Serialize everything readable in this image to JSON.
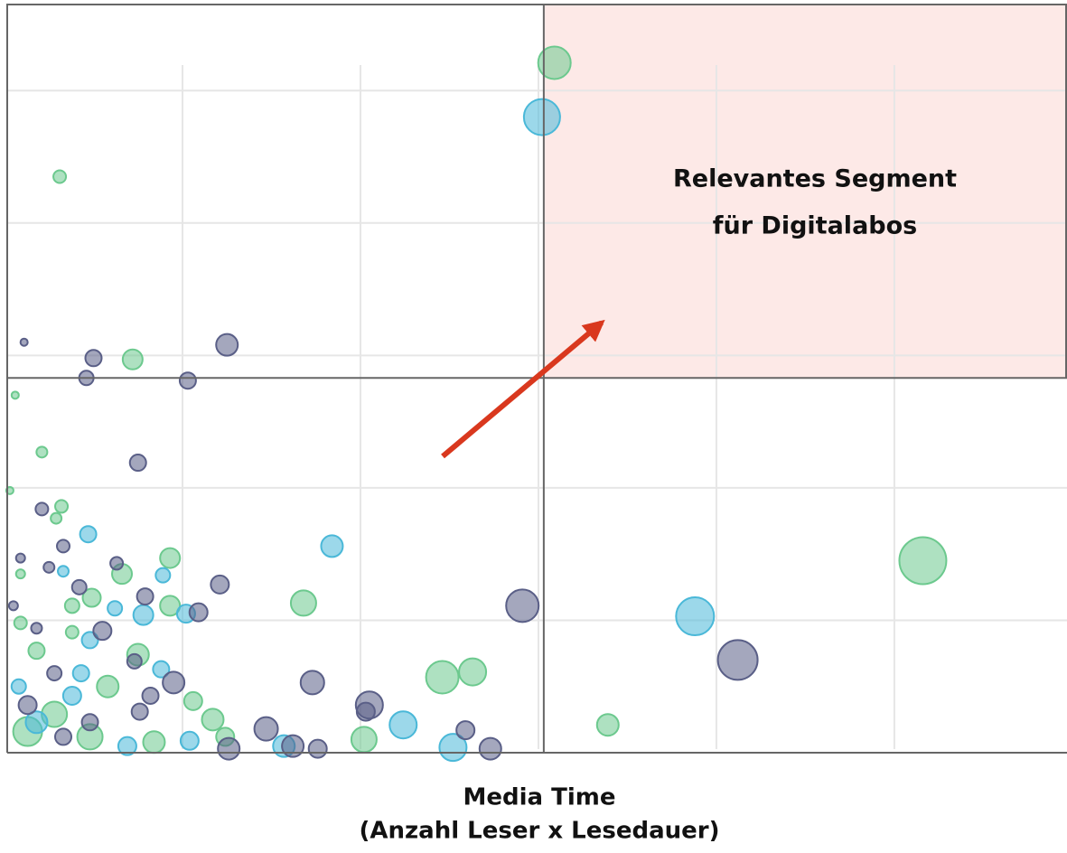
{
  "chart_data": {
    "type": "scatter",
    "xlabel": [
      "Media Time",
      "(Anzahl Leser x Lesedauer)"
    ],
    "annotation": [
      "Relevantes Segment",
      "für Digitalabos"
    ],
    "xlim": [
      0,
      5.97
    ],
    "ylim": [
      0,
      5.65
    ],
    "xticks": [
      1,
      2,
      3,
      4,
      5
    ],
    "yticks": [
      1,
      2,
      3,
      4,
      5
    ],
    "grid": true,
    "grid_color": "#e6e6e6",
    "quadrant_lines": {
      "x": 3.03,
      "y": 2.83
    },
    "highlight_color": "#fde9e7",
    "series": [
      {
        "color": "#6cc98e",
        "x": [
          3.09,
          0.31,
          0.72,
          0.06,
          0.21,
          0.32,
          0.29,
          0.03,
          0.93,
          0.66,
          0.49,
          1.68,
          0.93,
          5.16,
          2.46,
          2.63,
          3.39,
          2.02,
          0.75,
          1.06,
          1.17,
          0.38,
          0.09,
          0.18,
          0.58,
          0.28,
          0.13,
          0.48,
          0.84,
          1.24,
          0.09,
          0.38
        ],
        "values": [
          5.21,
          4.35,
          2.97,
          2.7,
          2.27,
          1.86,
          1.77,
          1.98,
          1.47,
          1.35,
          1.17,
          1.13,
          1.11,
          1.45,
          0.57,
          0.61,
          0.21,
          0.1,
          0.74,
          0.39,
          0.25,
          1.11,
          0.98,
          0.77,
          0.5,
          0.29,
          0.16,
          0.12,
          0.08,
          0.12,
          1.35,
          0.91
        ],
        "sizes": [
          18,
          7,
          11,
          4,
          6,
          7,
          6,
          4,
          11,
          11,
          10,
          14,
          11,
          26,
          18,
          15,
          12,
          14,
          12,
          10,
          12,
          8,
          7,
          9,
          12,
          14,
          16,
          14,
          12,
          10,
          5,
          7
        ]
      },
      {
        "color": "#4ab8d8",
        "x": [
          3.02,
          1.84,
          0.47,
          0.89,
          0.78,
          1.02,
          0.62,
          3.88,
          2.24,
          2.52,
          0.88,
          0.33,
          0.48,
          0.38,
          0.18,
          0.69,
          1.57,
          0.08,
          1.04,
          0.43
        ],
        "values": [
          4.8,
          1.56,
          1.65,
          1.34,
          1.04,
          1.05,
          1.09,
          1.03,
          0.21,
          0.04,
          0.63,
          1.37,
          0.85,
          0.43,
          0.23,
          0.05,
          0.05,
          0.5,
          0.09,
          0.6
        ],
        "sizes": [
          20,
          12,
          9,
          8,
          11,
          10,
          8,
          21,
          15,
          15,
          9,
          6,
          9,
          10,
          12,
          10,
          12,
          8,
          10,
          9
        ]
      },
      {
        "color": "#5a5f87",
        "x": [
          0.11,
          0.5,
          0.46,
          1.25,
          1.03,
          0.75,
          0.21,
          0.33,
          0.09,
          0.25,
          0.42,
          0.63,
          1.21,
          0.79,
          1.09,
          2.91,
          0.55,
          4.12,
          0.95,
          1.73,
          2.05,
          2.03,
          1.47,
          2.59,
          2.73,
          1.76,
          1.26,
          1.62,
          0.82,
          0.76,
          0.73,
          0.18,
          0.05,
          0.28,
          0.13,
          0.48,
          0.33
        ],
        "values": [
          3.1,
          2.98,
          2.83,
          3.08,
          2.81,
          2.19,
          1.84,
          1.56,
          1.47,
          1.4,
          1.25,
          1.43,
          1.27,
          1.18,
          1.06,
          1.11,
          0.92,
          0.7,
          0.53,
          0.53,
          0.36,
          0.31,
          0.18,
          0.17,
          0.03,
          0.03,
          0.03,
          0.05,
          0.43,
          0.31,
          0.69,
          0.94,
          1.11,
          0.6,
          0.36,
          0.23,
          0.12
        ],
        "sizes": [
          4,
          9,
          8,
          12,
          9,
          9,
          7,
          7,
          5,
          6,
          8,
          7,
          10,
          9,
          10,
          18,
          10,
          22,
          12,
          13,
          15,
          10,
          13,
          10,
          12,
          10,
          12,
          12,
          9,
          9,
          8,
          6,
          5,
          8,
          10,
          9,
          9
        ]
      }
    ]
  }
}
